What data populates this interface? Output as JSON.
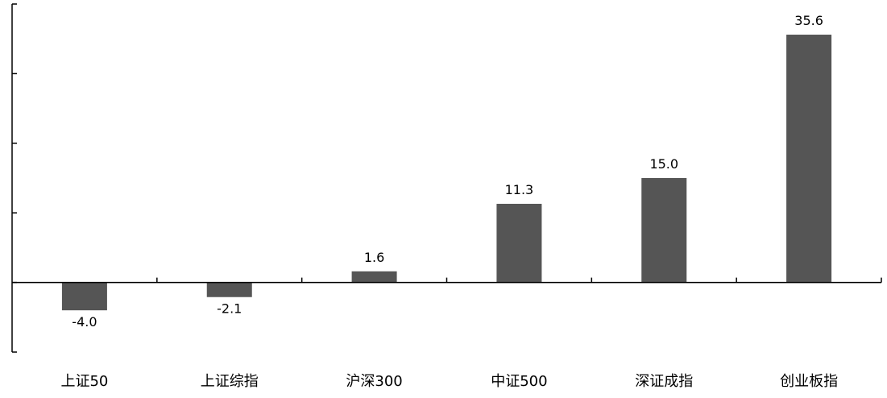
{
  "chart_data": {
    "type": "bar",
    "categories": [
      "上证50",
      "上证综指",
      "沪深300",
      "中证500",
      "深证成指",
      "创业板指"
    ],
    "values": [
      -4.0,
      -2.1,
      1.6,
      11.3,
      15.0,
      35.6
    ],
    "value_labels": [
      "-4.0",
      "-2.1",
      "1.6",
      "11.3",
      "15.0",
      "35.6"
    ],
    "title": "",
    "xlabel": "",
    "ylabel": "",
    "ylim": [
      -10,
      40
    ],
    "y_ticks": [
      -10,
      0,
      10,
      20,
      30,
      40
    ],
    "y_tick_labels_shown": false,
    "grid": false,
    "legend": "none",
    "bar_color": "#555555",
    "axis_color": "#000000"
  }
}
